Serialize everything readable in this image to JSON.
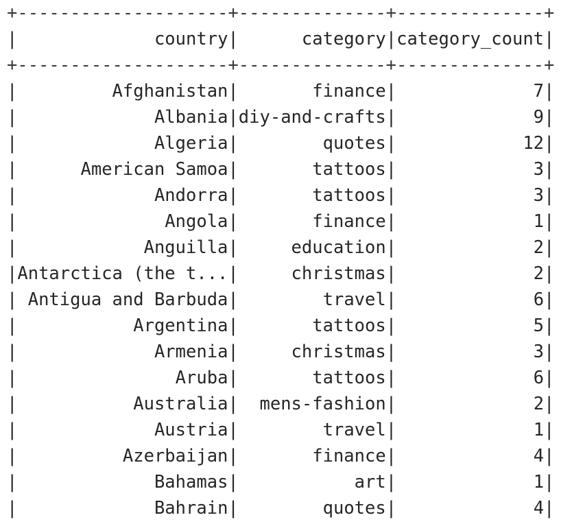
{
  "table": {
    "columns": [
      {
        "name": "country",
        "width": 20
      },
      {
        "name": "category",
        "width": 14
      },
      {
        "name": "category_count",
        "width": 14
      }
    ],
    "rows": [
      [
        "Afghanistan",
        "finance",
        "7"
      ],
      [
        "Albania",
        "diy-and-crafts",
        "9"
      ],
      [
        "Algeria",
        "quotes",
        "12"
      ],
      [
        "American Samoa",
        "tattoos",
        "3"
      ],
      [
        "Andorra",
        "tattoos",
        "3"
      ],
      [
        "Angola",
        "finance",
        "1"
      ],
      [
        "Anguilla",
        "education",
        "2"
      ],
      [
        "Antarctica (the t...",
        "christmas",
        "2"
      ],
      [
        "Antigua and Barbuda",
        "travel",
        "6"
      ],
      [
        "Argentina",
        "tattoos",
        "5"
      ],
      [
        "Armenia",
        "christmas",
        "3"
      ],
      [
        "Aruba",
        "tattoos",
        "6"
      ],
      [
        "Australia",
        "mens-fashion",
        "2"
      ],
      [
        "Austria",
        "travel",
        "1"
      ],
      [
        "Azerbaijan",
        "finance",
        "4"
      ],
      [
        "Bahamas",
        "art",
        "1"
      ],
      [
        "Bahrain",
        "quotes",
        "4"
      ]
    ]
  }
}
